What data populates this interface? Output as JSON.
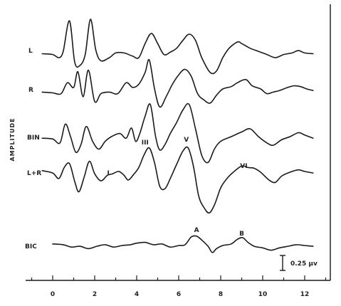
{
  "chart_data": {
    "type": "line",
    "ylabel": "AMPLITUDE",
    "xlim": [
      -1.5,
      13.5
    ],
    "x_ticks": [
      0,
      2,
      4,
      6,
      8,
      10,
      12
    ],
    "scale_bar": "0.25 µv",
    "series": [
      {
        "name": "L",
        "baseline": 0.0,
        "points": [
          [
            -0.5,
            -0.25
          ],
          [
            0,
            -0.3
          ],
          [
            0.3,
            -0.5
          ],
          [
            0.5,
            -0.1
          ],
          [
            0.8,
            1.85
          ],
          [
            1.05,
            -0.8
          ],
          [
            1.3,
            -1.0
          ],
          [
            1.55,
            -0.3
          ],
          [
            1.8,
            1.95
          ],
          [
            2.05,
            0.0
          ],
          [
            2.3,
            -0.7
          ],
          [
            2.7,
            -0.5
          ],
          [
            3.0,
            -0.2
          ],
          [
            3.4,
            -0.2
          ],
          [
            3.8,
            -0.4
          ],
          [
            4.1,
            -0.5
          ],
          [
            4.4,
            0.4
          ],
          [
            4.7,
            1.05
          ],
          [
            5.0,
            0.4
          ],
          [
            5.3,
            -0.3
          ],
          [
            5.6,
            -0.15
          ],
          [
            5.9,
            0.1
          ],
          [
            6.2,
            0.6
          ],
          [
            6.5,
            1.0
          ],
          [
            6.8,
            0.6
          ],
          [
            7.1,
            -0.5
          ],
          [
            7.5,
            -1.45
          ],
          [
            7.8,
            -1.35
          ],
          [
            8.1,
            -0.5
          ],
          [
            8.4,
            0.1
          ],
          [
            8.8,
            0.5
          ],
          [
            9.0,
            0.4
          ],
          [
            9.4,
            0.1
          ],
          [
            9.8,
            -0.1
          ],
          [
            10.2,
            -0.3
          ],
          [
            10.6,
            -0.5
          ],
          [
            11.0,
            -0.3
          ],
          [
            11.4,
            -0.2
          ],
          [
            11.7,
            -0.05
          ],
          [
            12.0,
            -0.2
          ],
          [
            12.4,
            -0.25
          ]
        ]
      },
      {
        "name": "R",
        "baseline": 0.0,
        "points": [
          [
            -0.5,
            -0.2
          ],
          [
            0,
            -0.25
          ],
          [
            0.4,
            -0.3
          ],
          [
            0.7,
            0.4
          ],
          [
            1.0,
            0.1
          ],
          [
            1.2,
            1.1
          ],
          [
            1.45,
            -0.5
          ],
          [
            1.7,
            1.2
          ],
          [
            2.0,
            -0.8
          ],
          [
            2.3,
            -0.3
          ],
          [
            2.7,
            -0.2
          ],
          [
            3.1,
            -0.3
          ],
          [
            3.5,
            0.4
          ],
          [
            3.8,
            0.1
          ],
          [
            4.1,
            0.3
          ],
          [
            4.4,
            1.05
          ],
          [
            4.6,
            1.85
          ],
          [
            4.85,
            0.0
          ],
          [
            5.1,
            -1.15
          ],
          [
            5.4,
            -0.5
          ],
          [
            5.7,
            0.3
          ],
          [
            6.0,
            0.9
          ],
          [
            6.3,
            1.25
          ],
          [
            6.6,
            0.8
          ],
          [
            6.9,
            -0.3
          ],
          [
            7.2,
            -0.7
          ],
          [
            7.5,
            -0.9
          ],
          [
            7.8,
            -0.4
          ],
          [
            8.1,
            0.0
          ],
          [
            8.5,
            0.15
          ],
          [
            8.8,
            0.4
          ],
          [
            9.2,
            0.6
          ],
          [
            9.5,
            0.2
          ],
          [
            9.9,
            0.0
          ],
          [
            10.2,
            -0.3
          ],
          [
            10.5,
            -0.2
          ],
          [
            10.8,
            -0.1
          ],
          [
            11.2,
            0.1
          ],
          [
            11.5,
            0.2
          ],
          [
            11.8,
            0.15
          ],
          [
            12.1,
            0.0
          ],
          [
            12.4,
            -0.1
          ]
        ]
      },
      {
        "name": "BIN",
        "baseline": 0.0,
        "points": [
          [
            -0.5,
            -0.1
          ],
          [
            0,
            -0.15
          ],
          [
            0.35,
            -0.4
          ],
          [
            0.6,
            0.8
          ],
          [
            0.85,
            0.0
          ],
          [
            1.1,
            -1.0
          ],
          [
            1.35,
            -0.5
          ],
          [
            1.6,
            0.65
          ],
          [
            1.9,
            -0.3
          ],
          [
            2.2,
            -0.8
          ],
          [
            2.5,
            -0.3
          ],
          [
            2.8,
            0.0
          ],
          [
            3.2,
            0.2
          ],
          [
            3.5,
            -0.1
          ],
          [
            3.75,
            0.55
          ],
          [
            3.95,
            -0.3
          ],
          [
            4.15,
            0.2
          ],
          [
            4.4,
            1.3
          ],
          [
            4.65,
            2.05
          ],
          [
            4.9,
            0.0
          ],
          [
            5.1,
            -0.85
          ],
          [
            5.35,
            -0.5
          ],
          [
            5.6,
            0.2
          ],
          [
            5.9,
            0.9
          ],
          [
            6.2,
            1.7
          ],
          [
            6.5,
            2.05
          ],
          [
            6.8,
            0.5
          ],
          [
            7.1,
            -1.2
          ],
          [
            7.4,
            -1.65
          ],
          [
            7.7,
            -0.8
          ],
          [
            8.0,
            -0.3
          ],
          [
            8.5,
            0.0
          ],
          [
            9.0,
            0.3
          ],
          [
            9.4,
            0.5
          ],
          [
            9.8,
            0.0
          ],
          [
            10.2,
            -0.4
          ],
          [
            10.5,
            -0.55
          ],
          [
            10.9,
            -0.2
          ],
          [
            11.3,
            0.0
          ],
          [
            11.7,
            0.25
          ],
          [
            12.0,
            0.1
          ],
          [
            12.4,
            -0.1
          ]
        ]
      },
      {
        "name": "L+R",
        "baseline": 0.0,
        "points": [
          [
            -0.5,
            0.1
          ],
          [
            0,
            -0.05
          ],
          [
            0.3,
            -0.4
          ],
          [
            0.55,
            0.3
          ],
          [
            0.8,
            0.55
          ],
          [
            1.05,
            -0.6
          ],
          [
            1.25,
            -1.25
          ],
          [
            1.5,
            -0.3
          ],
          [
            1.75,
            0.7
          ],
          [
            2.0,
            -0.1
          ],
          [
            2.3,
            -0.55
          ],
          [
            2.6,
            -0.2
          ],
          [
            2.85,
            -0.1
          ],
          [
            3.15,
            0.05
          ],
          [
            3.4,
            -0.2
          ],
          [
            3.6,
            -0.5
          ],
          [
            3.85,
            -0.15
          ],
          [
            4.1,
            0.3
          ],
          [
            4.35,
            1.1
          ],
          [
            4.6,
            1.55
          ],
          [
            4.85,
            0.6
          ],
          [
            5.1,
            -0.9
          ],
          [
            5.35,
            -1.05
          ],
          [
            5.6,
            -0.4
          ],
          [
            5.9,
            0.5
          ],
          [
            6.2,
            1.35
          ],
          [
            6.45,
            1.55
          ],
          [
            6.7,
            0.4
          ],
          [
            6.95,
            -1.5
          ],
          [
            7.2,
            -2.25
          ],
          [
            7.45,
            -2.6
          ],
          [
            7.7,
            -2.1
          ],
          [
            8.0,
            -1.0
          ],
          [
            8.3,
            -0.4
          ],
          [
            8.6,
            0.0
          ],
          [
            9.0,
            0.4
          ],
          [
            9.3,
            0.3
          ],
          [
            9.6,
            0.25
          ],
          [
            9.9,
            0.0
          ],
          [
            10.3,
            -0.5
          ],
          [
            10.6,
            -0.65
          ],
          [
            10.9,
            -0.25
          ],
          [
            11.3,
            0.0
          ],
          [
            11.7,
            0.15
          ],
          [
            12.0,
            0.05
          ],
          [
            12.4,
            -0.05
          ]
        ]
      },
      {
        "name": "BIC",
        "baseline": 0.0,
        "points": [
          [
            0.0,
            0.1
          ],
          [
            0.5,
            0.05
          ],
          [
            0.9,
            -0.1
          ],
          [
            1.3,
            -0.05
          ],
          [
            1.7,
            -0.2
          ],
          [
            2.1,
            -0.05
          ],
          [
            2.5,
            0.05
          ],
          [
            2.9,
            -0.1
          ],
          [
            3.3,
            0.0
          ],
          [
            3.7,
            0.05
          ],
          [
            4.0,
            0.15
          ],
          [
            4.4,
            0.2
          ],
          [
            4.8,
            0.05
          ],
          [
            5.2,
            0.1
          ],
          [
            5.6,
            -0.1
          ],
          [
            6.0,
            0.0
          ],
          [
            6.3,
            0.05
          ],
          [
            6.6,
            0.55
          ],
          [
            6.85,
            0.6
          ],
          [
            7.1,
            0.35
          ],
          [
            7.4,
            -0.05
          ],
          [
            7.6,
            -0.45
          ],
          [
            7.8,
            -0.2
          ],
          [
            8.1,
            0.0
          ],
          [
            8.5,
            0.1
          ],
          [
            8.8,
            0.4
          ],
          [
            9.05,
            0.5
          ],
          [
            9.3,
            0.2
          ],
          [
            9.6,
            -0.05
          ],
          [
            10.0,
            -0.15
          ],
          [
            10.4,
            -0.3
          ],
          [
            10.8,
            -0.15
          ],
          [
            11.2,
            -0.05
          ],
          [
            11.6,
            0.05
          ],
          [
            12.0,
            0.0
          ],
          [
            12.4,
            -0.05
          ]
        ]
      }
    ],
    "annotations": [
      {
        "text": "I",
        "x": 2.65,
        "series": "L+R"
      },
      {
        "text": "III",
        "x": 4.4,
        "series": "BIN"
      },
      {
        "text": "V",
        "x": 6.5,
        "series": "BIN"
      },
      {
        "text": "VI",
        "x": 9.1,
        "series": "L+R"
      },
      {
        "text": "A",
        "x": 6.85,
        "series": "BIC"
      },
      {
        "text": "B",
        "x": 9.0,
        "series": "BIC"
      }
    ]
  }
}
